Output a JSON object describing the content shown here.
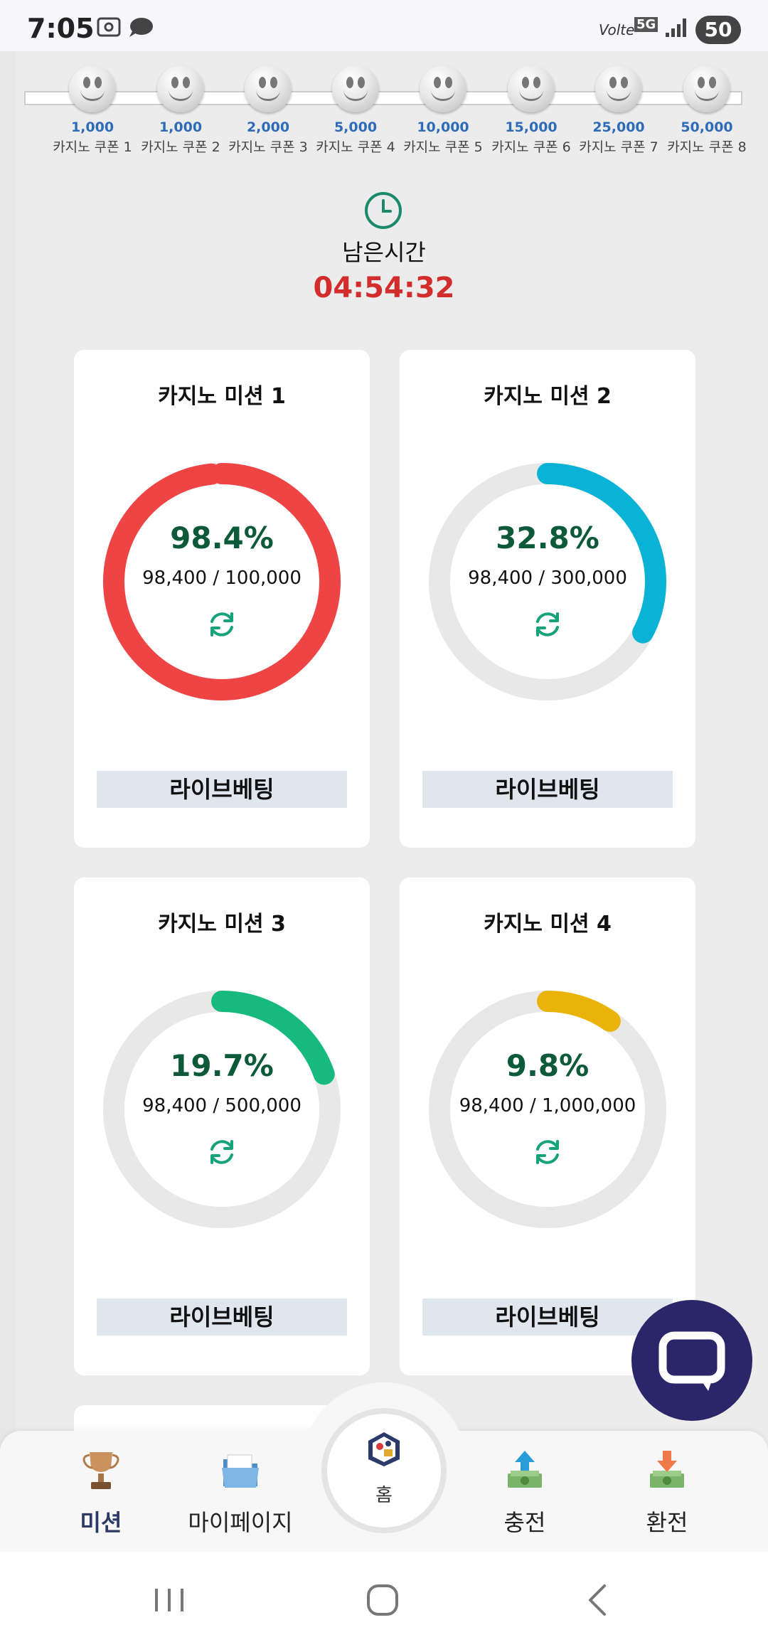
{
  "status_bar": {
    "time": "7:05",
    "network": "5G",
    "volte": "Volte",
    "battery": "50"
  },
  "coupons": [
    {
      "amount": "1,000",
      "name": "카지노 쿠폰 1"
    },
    {
      "amount": "1,000",
      "name": "카지노 쿠폰 2"
    },
    {
      "amount": "2,000",
      "name": "카지노 쿠폰 3"
    },
    {
      "amount": "5,000",
      "name": "카지노 쿠폰 4"
    },
    {
      "amount": "10,000",
      "name": "카지노 쿠폰 5"
    },
    {
      "amount": "15,000",
      "name": "카지노 쿠폰 6"
    },
    {
      "amount": "25,000",
      "name": "카지노 쿠폰 7"
    },
    {
      "amount": "50,000",
      "name": "카지노 쿠폰 8"
    }
  ],
  "timer": {
    "label": "남은시간",
    "value": "04:54:32"
  },
  "missions": [
    {
      "title": "카지노 미션 1",
      "percent_text": "98.4%",
      "progress": 0.984,
      "ratio": "98,400 / 100,000",
      "color": "#ee4444",
      "button": "라이브베팅"
    },
    {
      "title": "카지노 미션 2",
      "percent_text": "32.8%",
      "progress": 0.328,
      "ratio": "98,400 / 300,000",
      "color": "#0ab3d6",
      "button": "라이브베팅"
    },
    {
      "title": "카지노 미션 3",
      "percent_text": "19.7%",
      "progress": 0.197,
      "ratio": "98,400 / 500,000",
      "color": "#16b97e",
      "button": "라이브베팅"
    },
    {
      "title": "카지노 미션 4",
      "percent_text": "9.8%",
      "progress": 0.098,
      "ratio": "98,400 / 1,000,000",
      "color": "#eab308",
      "button": "라이브베팅"
    }
  ],
  "ring_track_color": "#e8e8e8",
  "bottom_nav": {
    "mission": "미션",
    "mypage": "마이페이지",
    "home": "홈",
    "charge": "충전",
    "exchange": "환전"
  },
  "icons": {
    "clock": "clock-icon",
    "refresh": "refresh-icon",
    "chat": "chat-bubble-icon",
    "trophy": "trophy-icon",
    "folder": "folder-icon",
    "home": "casino-home-icon",
    "charge": "money-upload-icon",
    "exchange": "money-download-icon"
  }
}
